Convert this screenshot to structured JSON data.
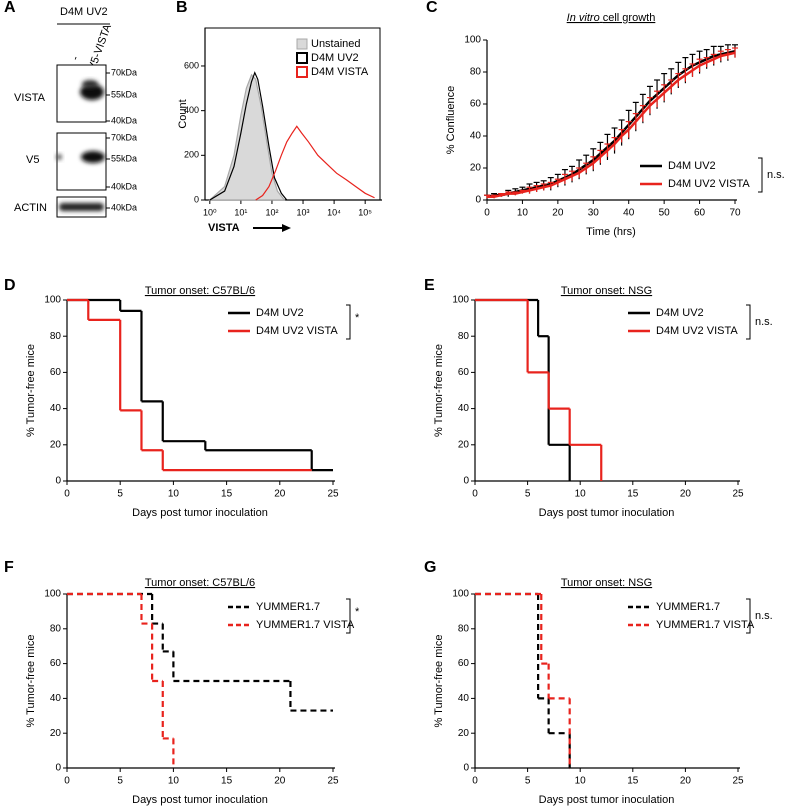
{
  "panel_labels": [
    "A",
    "B",
    "C",
    "D",
    "E",
    "F",
    "G"
  ],
  "blot": {
    "header": "D4M UV2",
    "lanes": [
      "-",
      "V5-VISTA"
    ],
    "rows": [
      {
        "label": "VISTA",
        "markers": [
          "70kDa",
          "55kDa",
          "40kDa"
        ]
      },
      {
        "label": "V5",
        "markers": [
          "70kDa",
          "55kDa",
          "40kDa"
        ]
      },
      {
        "label": "ACTIN",
        "markers": [
          "40kDa"
        ]
      }
    ]
  },
  "chart_data": [
    {
      "type": "line",
      "ylabel": "Count",
      "xlabel": "VISTA",
      "xscale": "log",
      "legend": "upper right",
      "xlim": [
        0.7,
        300000
      ],
      "xticks": [
        {
          "value": 1,
          "label": "10⁰"
        },
        {
          "value": 10,
          "label": "10¹"
        },
        {
          "value": 100,
          "label": "10²"
        },
        {
          "value": 1000,
          "label": "10³"
        },
        {
          "value": 10000,
          "label": "10⁴"
        },
        {
          "value": 100000,
          "label": "10⁵"
        }
      ],
      "ylim": [
        0,
        770
      ],
      "yticks": [
        0,
        200,
        400,
        600
      ],
      "series": [
        {
          "name": "Unstained",
          "color": "#a8a8a8",
          "fill": "#d9d9d9",
          "x": [
            1,
            3,
            6,
            10,
            15,
            22,
            30,
            45,
            70,
            100,
            150,
            250
          ],
          "values": [
            0,
            60,
            200,
            380,
            500,
            560,
            540,
            420,
            250,
            120,
            40,
            0
          ]
        },
        {
          "name": "D4M UV2",
          "color": "#000000",
          "x": [
            1,
            3,
            6,
            10,
            15,
            22,
            28,
            35,
            50,
            80,
            120,
            200,
            300
          ],
          "values": [
            0,
            40,
            150,
            300,
            430,
            530,
            570,
            540,
            420,
            240,
            100,
            30,
            0
          ]
        },
        {
          "name": "D4M VISTA",
          "color": "#e8231d",
          "x": [
            30,
            50,
            80,
            130,
            200,
            300,
            450,
            630,
            900,
            1500,
            3000,
            6000,
            12000,
            25000,
            50000,
            100000,
            200000
          ],
          "values": [
            0,
            20,
            60,
            130,
            200,
            260,
            300,
            330,
            300,
            260,
            200,
            160,
            120,
            90,
            60,
            30,
            10
          ]
        }
      ]
    },
    {
      "type": "errorbar",
      "title_prefix": "In vitro",
      "title": "cell growth",
      "xlabel": "Time (hrs)",
      "ylabel": "% Confluence",
      "legend": "lower right",
      "annotation": "n.s.",
      "xlim": [
        0,
        70
      ],
      "xticks": [
        0,
        10,
        20,
        30,
        40,
        50,
        60,
        70
      ],
      "ylim": [
        0,
        100
      ],
      "yticks": [
        0,
        20,
        40,
        60,
        80,
        100
      ],
      "x": [
        0,
        2,
        4,
        6,
        8,
        10,
        12,
        14,
        16,
        18,
        20,
        22,
        24,
        26,
        28,
        30,
        32,
        34,
        36,
        38,
        40,
        42,
        44,
        46,
        48,
        50,
        52,
        54,
        56,
        58,
        60,
        62,
        64,
        66,
        68,
        70
      ],
      "series": [
        {
          "name": "D4M UV2",
          "color": "#000000",
          "values": [
            2,
            3,
            3,
            4,
            5,
            6,
            7,
            8,
            9,
            10,
            12,
            14,
            16,
            19,
            22,
            25,
            29,
            33,
            37,
            42,
            47,
            52,
            57,
            62,
            66,
            70,
            74,
            78,
            81,
            84,
            86,
            88,
            90,
            91,
            92,
            93
          ],
          "errors": [
            1,
            1,
            1,
            2,
            2,
            2,
            3,
            3,
            3,
            4,
            4,
            5,
            5,
            6,
            6,
            7,
            7,
            8,
            8,
            8,
            9,
            9,
            9,
            9,
            9,
            9,
            8,
            8,
            8,
            7,
            7,
            6,
            6,
            5,
            5,
            4
          ]
        },
        {
          "name": "D4M UV2 VISTA",
          "color": "#e8231d",
          "values": [
            2,
            2,
            3,
            4,
            4,
            5,
            6,
            7,
            8,
            9,
            11,
            13,
            15,
            17,
            20,
            23,
            27,
            31,
            35,
            40,
            44,
            49,
            54,
            59,
            63,
            67,
            71,
            75,
            78,
            81,
            84,
            86,
            88,
            90,
            91,
            92
          ],
          "errors": [
            1,
            1,
            1,
            1,
            1,
            1,
            2,
            2,
            2,
            2,
            2,
            3,
            3,
            3,
            3,
            4,
            4,
            4,
            4,
            4,
            5,
            5,
            5,
            5,
            5,
            5,
            4,
            4,
            4,
            4,
            4,
            3,
            3,
            3,
            3,
            3
          ]
        }
      ]
    },
    {
      "type": "step",
      "title": "Tumor onset: C57BL/6",
      "xlabel": "Days post tumor inoculation",
      "ylabel": "% Tumor-free mice",
      "legend": "upper right",
      "annotation": "*",
      "xlim": [
        0,
        25
      ],
      "xticks": [
        0,
        5,
        10,
        15,
        20,
        25
      ],
      "ylim": [
        0,
        100
      ],
      "yticks": [
        0,
        20,
        40,
        60,
        80,
        100
      ],
      "series": [
        {
          "name": "D4M UV2",
          "color": "#000000",
          "dash": false,
          "x": [
            0,
            5,
            7,
            9,
            13,
            23
          ],
          "values": [
            100,
            94,
            44,
            22,
            17,
            6
          ],
          "end": 25
        },
        {
          "name": "D4M UV2 VISTA",
          "color": "#e8231d",
          "dash": false,
          "x": [
            0,
            2,
            5,
            7,
            9
          ],
          "values": [
            100,
            89,
            39,
            17,
            6
          ],
          "end": 23
        }
      ]
    },
    {
      "type": "step",
      "title": "Tumor onset: NSG",
      "xlabel": "Days post tumor inoculation",
      "ylabel": "% Tumor-free mice",
      "legend": "upper right",
      "annotation": "n.s.",
      "xlim": [
        0,
        25
      ],
      "xticks": [
        0,
        5,
        10,
        15,
        20,
        25
      ],
      "ylim": [
        0,
        100
      ],
      "yticks": [
        0,
        20,
        40,
        60,
        80,
        100
      ],
      "series": [
        {
          "name": "D4M UV2",
          "color": "#000000",
          "dash": false,
          "x": [
            0,
            6,
            7,
            9
          ],
          "values": [
            100,
            80,
            20,
            0
          ],
          "end": 9
        },
        {
          "name": "D4M UV2 VISTA",
          "color": "#e8231d",
          "dash": false,
          "x": [
            0,
            5,
            7,
            9,
            12
          ],
          "values": [
            100,
            60,
            40,
            20,
            0
          ],
          "end": 12
        }
      ]
    },
    {
      "type": "step",
      "title": "Tumor onset: C57BL/6",
      "xlabel": "Days post tumor inoculation",
      "ylabel": "% Tumor-free mice",
      "legend": "upper right",
      "annotation": "*",
      "xlim": [
        0,
        25
      ],
      "xticks": [
        0,
        5,
        10,
        15,
        20,
        25
      ],
      "ylim": [
        0,
        100
      ],
      "yticks": [
        0,
        20,
        40,
        60,
        80,
        100
      ],
      "series": [
        {
          "name": "YUMMER1.7",
          "color": "#000000",
          "dash": true,
          "x": [
            0,
            8,
            9,
            10,
            21
          ],
          "values": [
            100,
            83,
            67,
            50,
            33
          ],
          "end": 25
        },
        {
          "name": "YUMMER1.7 VISTA",
          "color": "#e8231d",
          "dash": true,
          "x": [
            0,
            7,
            8,
            9,
            10
          ],
          "values": [
            100,
            83,
            50,
            17,
            0
          ],
          "end": 10
        }
      ]
    },
    {
      "type": "step",
      "title": "Tumor onset: NSG",
      "xlabel": "Days post tumor inoculation",
      "ylabel": "% Tumor-free mice",
      "legend": "upper right",
      "annotation": "n.s.",
      "xlim": [
        0,
        25
      ],
      "xticks": [
        0,
        5,
        10,
        15,
        20,
        25
      ],
      "ylim": [
        0,
        100
      ],
      "yticks": [
        0,
        20,
        40,
        60,
        80,
        100
      ],
      "series": [
        {
          "name": "YUMMER1.7",
          "color": "#000000",
          "dash": true,
          "x": [
            0,
            6,
            7,
            9
          ],
          "values": [
            100,
            40,
            20,
            0
          ],
          "end": 9
        },
        {
          "name": "YUMMER1.7 VISTA",
          "color": "#e8231d",
          "dash": true,
          "x": [
            0,
            6.3,
            7,
            9
          ],
          "values": [
            100,
            60,
            40,
            0
          ],
          "end": 9
        }
      ]
    }
  ]
}
